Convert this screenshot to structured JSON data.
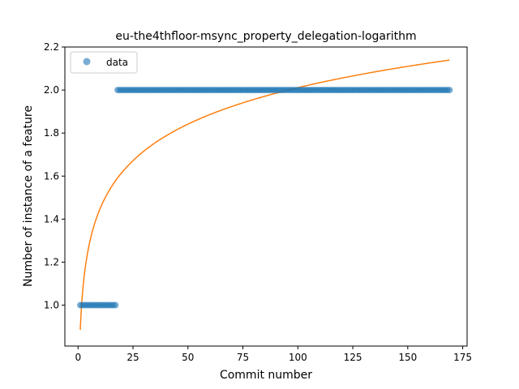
{
  "chart_data": {
    "type": "scatter",
    "title": "eu-the4thfloor-msync_property_delegation-logarithm",
    "xlabel": "Commit number",
    "ylabel": "Number of instance of a feature",
    "xlim": [
      -6,
      177
    ],
    "ylim": [
      0.81,
      2.2
    ],
    "xticks": [
      0,
      25,
      50,
      75,
      100,
      125,
      150,
      175
    ],
    "yticks": [
      1.0,
      1.2,
      1.4,
      1.6,
      1.8,
      2.0,
      2.2
    ],
    "xtick_labels": [
      "0",
      "25",
      "50",
      "75",
      "100",
      "125",
      "150",
      "175"
    ],
    "ytick_labels": [
      "1.0",
      "1.2",
      "1.4",
      "1.6",
      "1.8",
      "2.0",
      "2.2"
    ],
    "legend": {
      "label": "data",
      "position": "top-left"
    },
    "grid": false,
    "series": [
      {
        "name": "data",
        "kind": "scatter",
        "color": "#1f77b4",
        "segments": [
          {
            "x_from": 1,
            "x_to": 17,
            "y": 1.0
          },
          {
            "x_from": 18,
            "x_to": 169,
            "y": 2.0
          }
        ]
      },
      {
        "kind": "line",
        "color": "#ff7f0e",
        "fit": "logarithmic",
        "a": 0.885,
        "b": 0.2445,
        "x_range": [
          1,
          169
        ]
      }
    ]
  }
}
